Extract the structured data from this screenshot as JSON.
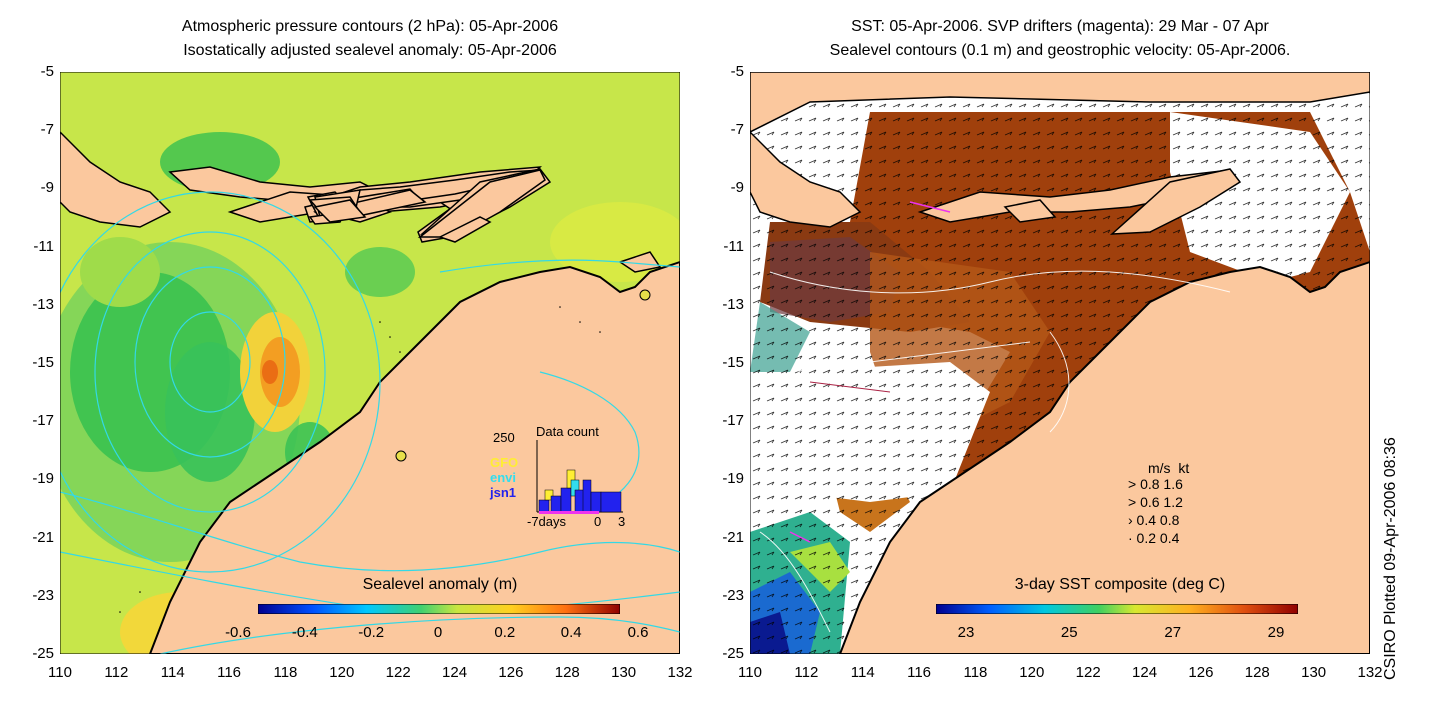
{
  "left_panel": {
    "title_line1": "Atmospheric pressure contours (2 hPa): 05-Apr-2006",
    "title_line2": "Isostatically adjusted sealevel anomaly: 05-Apr-2006",
    "colorbar_title": "Sealevel anomaly (m)",
    "colorbar_ticks": [
      "-0.6",
      "-0.4",
      "-0.2",
      "0",
      "0.2",
      "0.4",
      "0.6"
    ],
    "inset": {
      "max_label": "250",
      "title": "Data count",
      "legend": [
        "GFO",
        "envi",
        "jsn1"
      ],
      "legend_colors": [
        "#ffee33",
        "#33ddee",
        "#2222ee"
      ],
      "x_labels": [
        "-7days",
        "0",
        "3"
      ]
    }
  },
  "right_panel": {
    "title_line1": "SST: 05-Apr-2006. SVP drifters (magenta): 29 Mar - 07 Apr",
    "title_line2": "Sealevel contours (0.1 m) and geostrophic velocity: 05-Apr-2006.",
    "colorbar_title": "3-day SST composite (deg C)",
    "colorbar_ticks": [
      "23",
      "25",
      "27",
      "29"
    ],
    "vector_legend": {
      "header_ms": "m/s",
      "header_kt": "kt",
      "rows": [
        {
          "ms": "0.8",
          "kt": "1.6"
        },
        {
          "ms": "0.6",
          "kt": "1.2"
        },
        {
          "ms": "0.4",
          "kt": "0.8"
        },
        {
          "ms": "0.2",
          "kt": "0.4"
        }
      ]
    }
  },
  "y_ticks": [
    "-5",
    "-7",
    "-9",
    "-11",
    "-13",
    "-15",
    "-17",
    "-19",
    "-21",
    "-23",
    "-25"
  ],
  "x_ticks": [
    "110",
    "112",
    "114",
    "116",
    "118",
    "120",
    "122",
    "124",
    "126",
    "128",
    "130",
    "132"
  ],
  "credit": "CSIRO Plotted 09-Apr-2006 08:36",
  "colors": {
    "land": "#fbc89e",
    "ocean_green": "#c7e64a",
    "sst_brown": "#a0400c"
  }
}
